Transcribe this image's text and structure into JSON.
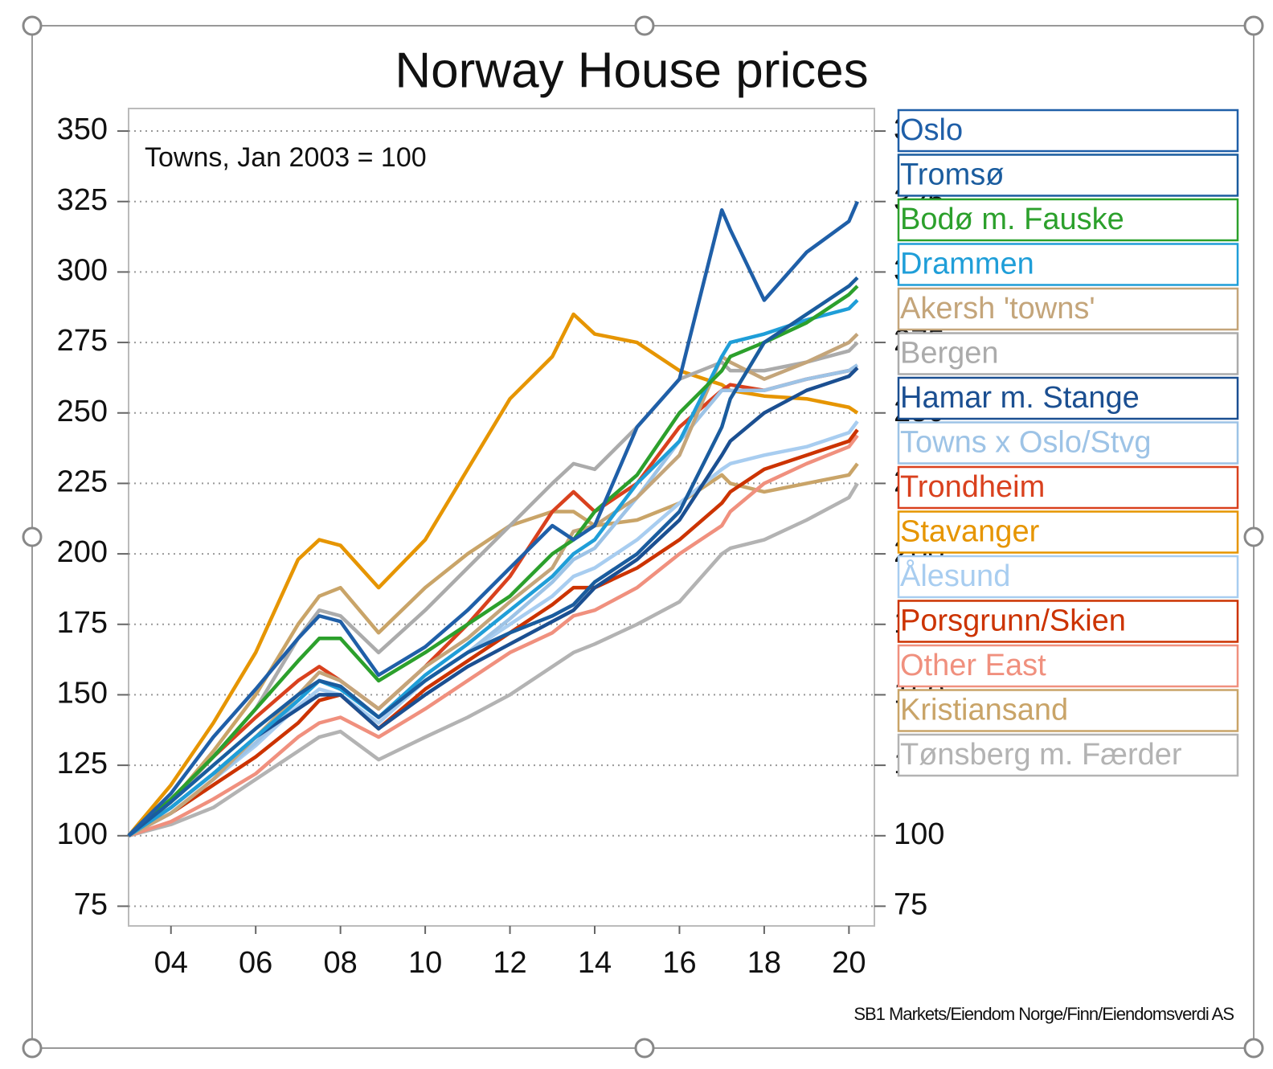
{
  "chart_data": {
    "type": "line",
    "title": "Norway House prices",
    "annotation": "Towns, Jan 2003 = 100",
    "source": "SB1 Markets/Eiendom Norge/Finn/Eiendomsverdi AS",
    "x": [
      2003,
      2004,
      2005,
      2006,
      2007,
      2007.5,
      2008,
      2008.9,
      2010,
      2011,
      2012,
      2013,
      2013.5,
      2014,
      2015,
      2016,
      2017,
      2017.2,
      2018,
      2019,
      2020,
      2020.2
    ],
    "xlim": [
      2003,
      2020.6
    ],
    "xticks": [
      {
        "value": 2004,
        "label": "04"
      },
      {
        "value": 2006,
        "label": "06"
      },
      {
        "value": 2008,
        "label": "08"
      },
      {
        "value": 2010,
        "label": "10"
      },
      {
        "value": 2012,
        "label": "12"
      },
      {
        "value": 2014,
        "label": "14"
      },
      {
        "value": 2016,
        "label": "16"
      },
      {
        "value": 2018,
        "label": "18"
      },
      {
        "value": 2020,
        "label": "20"
      }
    ],
    "ylim": [
      68,
      358
    ],
    "yticks": [
      75,
      100,
      125,
      150,
      175,
      200,
      225,
      250,
      275,
      300,
      325,
      350
    ],
    "y2lim": [
      68,
      358
    ],
    "y2ticks": [
      75,
      100,
      125,
      150,
      175,
      200,
      225,
      250,
      275,
      300,
      325,
      350
    ],
    "grid": true,
    "series": [
      {
        "name": "Oslo",
        "color": "#1f5fa8",
        "values": [
          100,
          115,
          135,
          152,
          170,
          178,
          176,
          157,
          167,
          180,
          195,
          210,
          205,
          210,
          245,
          262,
          322,
          315,
          290,
          307,
          318,
          325
        ]
      },
      {
        "name": "Tromsø",
        "color": "#1a5c9e",
        "values": [
          100,
          112,
          125,
          138,
          150,
          155,
          153,
          142,
          155,
          165,
          172,
          178,
          182,
          190,
          200,
          215,
          245,
          255,
          275,
          285,
          295,
          298
        ]
      },
      {
        "name": "Bodø m. Fauske",
        "color": "#2ca02c",
        "values": [
          100,
          113,
          128,
          145,
          162,
          170,
          170,
          155,
          165,
          175,
          185,
          200,
          205,
          215,
          228,
          250,
          265,
          270,
          275,
          282,
          292,
          295
        ]
      },
      {
        "name": "Drammen",
        "color": "#1f9ed8",
        "values": [
          100,
          110,
          122,
          135,
          148,
          155,
          152,
          142,
          157,
          168,
          180,
          192,
          200,
          205,
          225,
          240,
          270,
          275,
          278,
          283,
          287,
          290
        ]
      },
      {
        "name": "Akersh 'towns'",
        "color": "#c4a57a",
        "values": [
          100,
          108,
          120,
          135,
          150,
          158,
          155,
          145,
          160,
          170,
          183,
          195,
          208,
          210,
          220,
          235,
          270,
          268,
          262,
          268,
          275,
          278
        ]
      },
      {
        "name": "Bergen",
        "color": "#ababab",
        "values": [
          100,
          112,
          128,
          145,
          170,
          180,
          178,
          165,
          180,
          195,
          210,
          225,
          232,
          230,
          245,
          262,
          268,
          265,
          265,
          268,
          272,
          275
        ]
      },
      {
        "name": "Hamar m. Stange",
        "color": "#1b4f91",
        "values": [
          100,
          110,
          122,
          135,
          145,
          150,
          150,
          138,
          150,
          160,
          168,
          176,
          180,
          188,
          198,
          212,
          235,
          240,
          250,
          258,
          263,
          266
        ]
      },
      {
        "name": "Towns x Oslo/Stvg",
        "color": "#9dc3e6",
        "values": [
          100,
          108,
          120,
          133,
          148,
          155,
          153,
          142,
          155,
          165,
          177,
          190,
          198,
          202,
          220,
          240,
          258,
          258,
          258,
          262,
          265,
          267
        ]
      },
      {
        "name": "Trondheim",
        "color": "#d9411e",
        "values": [
          100,
          112,
          128,
          142,
          155,
          160,
          155,
          145,
          160,
          175,
          192,
          215,
          222,
          215,
          225,
          245,
          258,
          260,
          258,
          262,
          265,
          266
        ]
      },
      {
        "name": "Stavanger",
        "color": "#e69500",
        "values": [
          100,
          118,
          140,
          165,
          198,
          205,
          203,
          188,
          205,
          230,
          255,
          270,
          285,
          278,
          275,
          265,
          260,
          258,
          256,
          255,
          252,
          250
        ]
      },
      {
        "name": "Ålesund",
        "color": "#a8cdf0",
        "values": [
          100,
          108,
          120,
          132,
          146,
          152,
          150,
          140,
          155,
          165,
          175,
          185,
          192,
          195,
          205,
          218,
          230,
          232,
          235,
          238,
          243,
          247
        ]
      },
      {
        "name": "Porsgrunn/Skien",
        "color": "#cc3300",
        "values": [
          100,
          108,
          118,
          128,
          140,
          148,
          150,
          138,
          152,
          162,
          172,
          182,
          188,
          188,
          195,
          205,
          218,
          222,
          230,
          235,
          240,
          244
        ]
      },
      {
        "name": "Other East",
        "color": "#f0907e",
        "values": [
          100,
          105,
          113,
          122,
          135,
          140,
          142,
          135,
          145,
          155,
          165,
          172,
          178,
          180,
          188,
          200,
          210,
          215,
          225,
          232,
          238,
          242
        ]
      },
      {
        "name": "Kristiansand",
        "color": "#c9a468",
        "values": [
          100,
          112,
          130,
          150,
          175,
          185,
          188,
          172,
          188,
          200,
          210,
          215,
          215,
          210,
          212,
          218,
          228,
          225,
          222,
          225,
          228,
          232
        ]
      },
      {
        "name": "Tønsberg m. Færder",
        "color": "#b3b3b3",
        "values": [
          100,
          104,
          110,
          120,
          130,
          135,
          137,
          127,
          135,
          142,
          150,
          160,
          165,
          168,
          175,
          183,
          200,
          202,
          205,
          212,
          220,
          225
        ]
      }
    ]
  }
}
